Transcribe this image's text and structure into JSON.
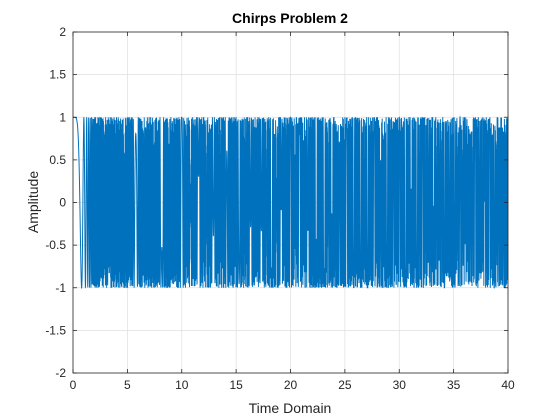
{
  "chart_data": {
    "type": "line",
    "title": "Chirps Problem 2",
    "xlabel": "Time Domain",
    "ylabel": "Amplitude",
    "xlim": [
      0,
      40
    ],
    "ylim": [
      -2,
      2
    ],
    "xticks": [
      0,
      5,
      10,
      15,
      20,
      25,
      30,
      35,
      40
    ],
    "yticks": [
      -2,
      -1.5,
      -1,
      -0.5,
      0,
      0.5,
      1,
      1.5,
      2
    ],
    "xtick_labels": [
      "0",
      "5",
      "10",
      "15",
      "20",
      "25",
      "30",
      "35",
      "40"
    ],
    "ytick_labels": [
      "-2",
      "-1.5",
      "-1",
      "-0.5",
      "0",
      "0.5",
      "1",
      "1.5",
      "2"
    ],
    "grid": true,
    "series": [
      {
        "color": "#0072bd",
        "function": "cos(2*pi*t^3)",
        "x_range": [
          0,
          40
        ],
        "points": [
          {
            "t": 0,
            "y": 1
          },
          {
            "t": 0.8,
            "y": 0.98
          },
          {
            "t": 2.3,
            "y": -1
          },
          {
            "t": 3.2,
            "y": 1
          },
          {
            "t": 4.0,
            "y": -1
          },
          {
            "t": 6.2,
            "y": 1
          },
          {
            "t": 8.7,
            "y": -1
          },
          {
            "t": 9.4,
            "y": 1
          },
          {
            "t": 10.2,
            "y": -1
          },
          {
            "t": 12.5,
            "y": 1
          },
          {
            "t": 15.0,
            "y": -1
          },
          {
            "t": 15.6,
            "y": 1
          },
          {
            "t": 16.4,
            "y": -1
          },
          {
            "t": 18.8,
            "y": 1
          },
          {
            "t": 21.2,
            "y": -1
          },
          {
            "t": 21.9,
            "y": 1
          },
          {
            "t": 22.7,
            "y": -1
          },
          {
            "t": 25.0,
            "y": 1
          },
          {
            "t": 27.5,
            "y": -1
          },
          {
            "t": 28.2,
            "y": 1
          },
          {
            "t": 29.0,
            "y": -1
          },
          {
            "t": 31.3,
            "y": 1
          },
          {
            "t": 33.8,
            "y": -1
          },
          {
            "t": 34.5,
            "y": 1
          },
          {
            "t": 35.3,
            "y": -1
          },
          {
            "t": 37.5,
            "y": 1
          },
          {
            "t": 40.0,
            "y": -1
          }
        ]
      }
    ]
  }
}
